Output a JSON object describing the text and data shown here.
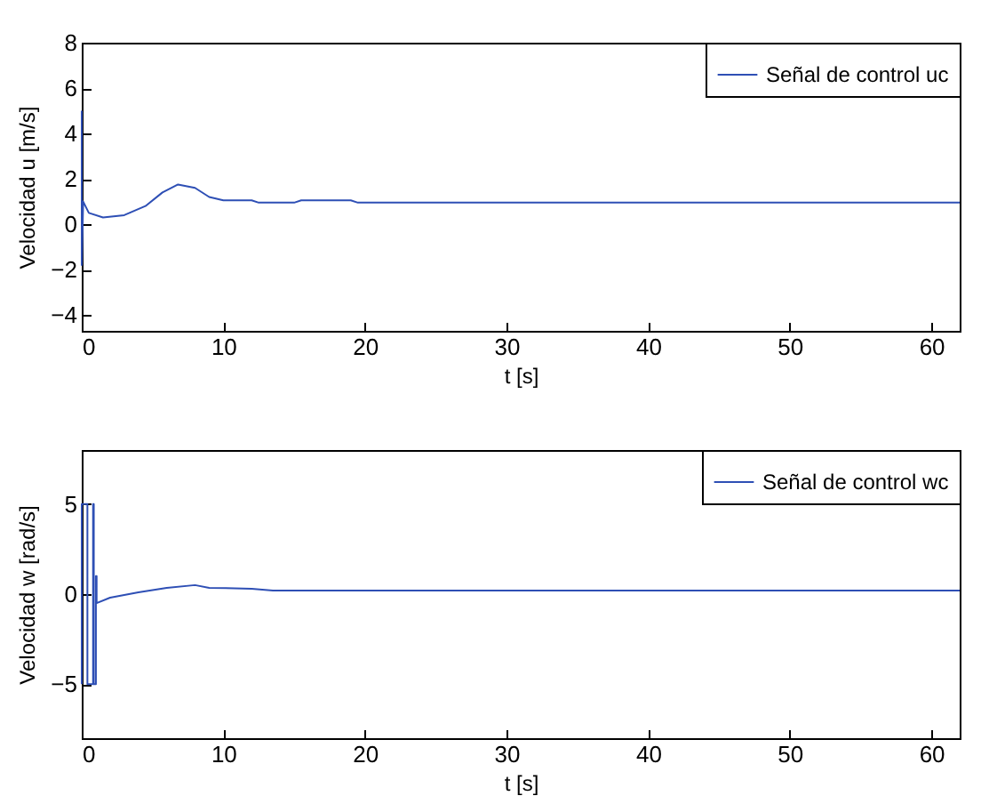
{
  "chart_data": [
    {
      "type": "line",
      "xlabel": "t [s]",
      "ylabel": "Velocidad u [m/s]",
      "xlim": [
        0,
        62
      ],
      "ylim": [
        -4.7,
        8
      ],
      "xticks": [
        0,
        10,
        20,
        30,
        40,
        50,
        60
      ],
      "yticks": [
        -4,
        -2,
        0,
        2,
        4,
        6,
        8
      ],
      "grid": false,
      "legend": "top right",
      "series": [
        {
          "name": "Señal de control uc",
          "color": "#2e4fb5",
          "x": [
            0,
            0,
            0.1,
            0.5,
            1.5,
            3,
            4.5,
            5.7,
            6.8,
            8,
            9,
            10,
            12,
            12.5,
            15,
            15.5,
            19,
            19.5,
            62
          ],
          "values": [
            5,
            -1.8,
            1,
            0.5,
            0.3,
            0.4,
            0.8,
            1.4,
            1.75,
            1.6,
            1.2,
            1.05,
            1.05,
            0.95,
            0.95,
            1.05,
            1.05,
            0.95,
            0.95
          ]
        }
      ]
    },
    {
      "type": "line",
      "xlabel": "t [s]",
      "ylabel": "Velocidad w [rad/s]",
      "xlim": [
        0,
        62
      ],
      "ylim": [
        -8,
        8
      ],
      "xticks": [
        0,
        10,
        20,
        30,
        40,
        50,
        60
      ],
      "yticks": [
        -5,
        0,
        5
      ],
      "grid": false,
      "legend": "top right",
      "series": [
        {
          "name": "Señal de control wc",
          "color": "#2e4fb5",
          "x": [
            0,
            0,
            0.4,
            0.4,
            0.8,
            0.8,
            0.85,
            0.85,
            1,
            1,
            1.05,
            1.05,
            2,
            4,
            6,
            8,
            9,
            12,
            13.5,
            62
          ],
          "values": [
            -5,
            5,
            5,
            -5,
            -5,
            5,
            5,
            -5,
            -5,
            1,
            1,
            -0.5,
            -0.2,
            0.1,
            0.35,
            0.5,
            0.35,
            0.3,
            0.2,
            0.2
          ]
        }
      ]
    }
  ]
}
